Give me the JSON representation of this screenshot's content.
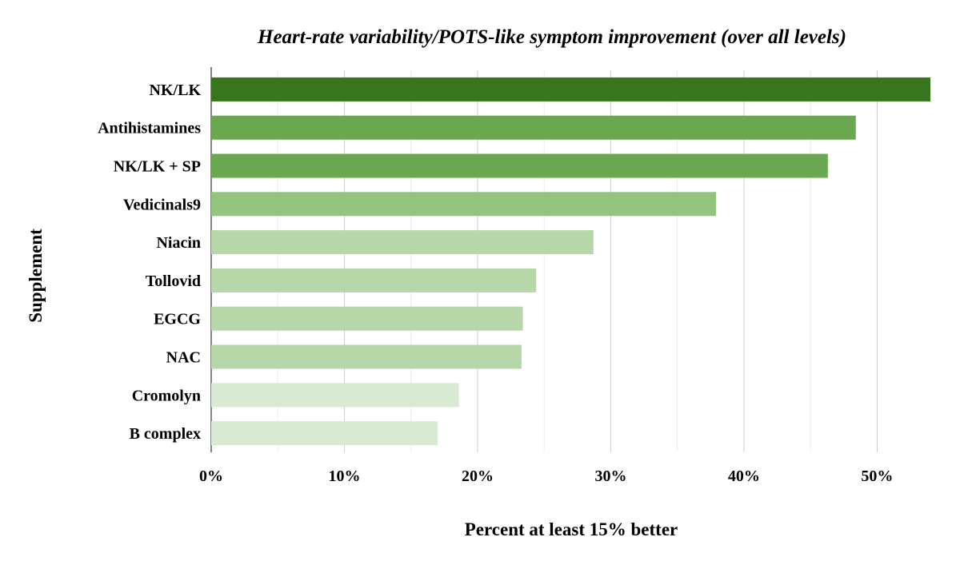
{
  "chart_data": {
    "type": "bar",
    "orientation": "horizontal",
    "title": "Heart-rate variability/POTS-like symptom improvement (over all levels)",
    "xlabel": "Percent at least 15% better",
    "ylabel": "Supplement",
    "xlim": [
      0,
      54
    ],
    "xticks": [
      0,
      10,
      20,
      30,
      40,
      50
    ],
    "xtick_labels": [
      "0%",
      "10%",
      "20%",
      "30%",
      "40%",
      "50%"
    ],
    "grid": true,
    "categories": [
      "NK/LK",
      "Antihistamines",
      "NK/LK + SP",
      "Vedicinals9",
      "Niacin",
      "Tollovid",
      "EGCG",
      "NAC",
      "Cromolyn",
      "B complex"
    ],
    "values": [
      54.0,
      48.4,
      46.3,
      37.9,
      28.7,
      24.4,
      23.4,
      23.3,
      18.6,
      17.0
    ],
    "colors": [
      "#38761d",
      "#6aa84f",
      "#6aa84f",
      "#93c47d",
      "#b6d7a8",
      "#b6d7a8",
      "#b6d7a8",
      "#b6d7a8",
      "#d9ead3",
      "#d9ead3"
    ]
  }
}
